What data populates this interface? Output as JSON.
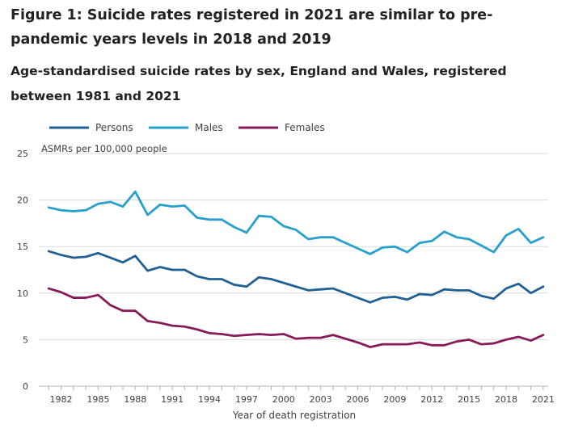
{
  "title": "Figure 1: Suicide rates registered in 2021 are similar to pre-pandemic years levels in 2018 and 2019",
  "subtitle": "Age-standardised suicide rates by sex, England and Wales, registered between 1981 and 2021",
  "chart_data": {
    "type": "line",
    "ylabel": "ASMRs per 100,000 people",
    "xlabel": "Year of death registration",
    "ylim": [
      0,
      25
    ],
    "y_ticks": [
      0,
      5,
      10,
      15,
      20,
      25
    ],
    "x_ticks": [
      1982,
      1985,
      1988,
      1991,
      1994,
      1997,
      2000,
      2003,
      2006,
      2009,
      2012,
      2015,
      2018,
      2021
    ],
    "x": [
      1981,
      1982,
      1983,
      1984,
      1985,
      1986,
      1987,
      1988,
      1989,
      1990,
      1991,
      1992,
      1993,
      1994,
      1995,
      1996,
      1997,
      1998,
      1999,
      2000,
      2001,
      2002,
      2003,
      2004,
      2005,
      2006,
      2007,
      2008,
      2009,
      2010,
      2011,
      2012,
      2013,
      2014,
      2015,
      2016,
      2017,
      2018,
      2019,
      2020,
      2021
    ],
    "grid": true,
    "legend_position": "top-left",
    "series": [
      {
        "name": "Persons",
        "color": "#206095",
        "values": [
          14.5,
          14.1,
          13.8,
          13.9,
          14.3,
          13.8,
          13.3,
          14.0,
          12.4,
          12.8,
          12.5,
          12.5,
          11.8,
          11.5,
          11.5,
          10.9,
          10.7,
          11.7,
          11.5,
          11.1,
          10.7,
          10.3,
          10.4,
          10.5,
          10.0,
          9.5,
          9.0,
          9.5,
          9.6,
          9.3,
          9.9,
          9.8,
          10.4,
          10.3,
          10.3,
          9.7,
          9.4,
          10.5,
          11.0,
          10.0,
          10.7
        ]
      },
      {
        "name": "Males",
        "color": "#27A0CC",
        "values": [
          19.2,
          18.9,
          18.8,
          18.9,
          19.6,
          19.8,
          19.3,
          20.9,
          18.4,
          19.5,
          19.3,
          19.4,
          18.1,
          17.9,
          17.9,
          17.1,
          16.5,
          18.3,
          18.2,
          17.2,
          16.8,
          15.8,
          16.0,
          16.0,
          15.4,
          14.8,
          14.2,
          14.9,
          15.0,
          14.4,
          15.4,
          15.6,
          16.6,
          16.0,
          15.8,
          15.1,
          14.4,
          16.2,
          16.9,
          15.4,
          16.0
        ]
      },
      {
        "name": "Females",
        "color": "#871A5B",
        "values": [
          10.5,
          10.1,
          9.5,
          9.5,
          9.8,
          8.7,
          8.1,
          8.1,
          7.0,
          6.8,
          6.5,
          6.4,
          6.1,
          5.7,
          5.6,
          5.4,
          5.5,
          5.6,
          5.5,
          5.6,
          5.1,
          5.2,
          5.2,
          5.5,
          5.1,
          4.7,
          4.2,
          4.5,
          4.5,
          4.5,
          4.7,
          4.4,
          4.4,
          4.8,
          5.0,
          4.5,
          4.6,
          5.0,
          5.3,
          4.9,
          5.5
        ]
      }
    ]
  }
}
